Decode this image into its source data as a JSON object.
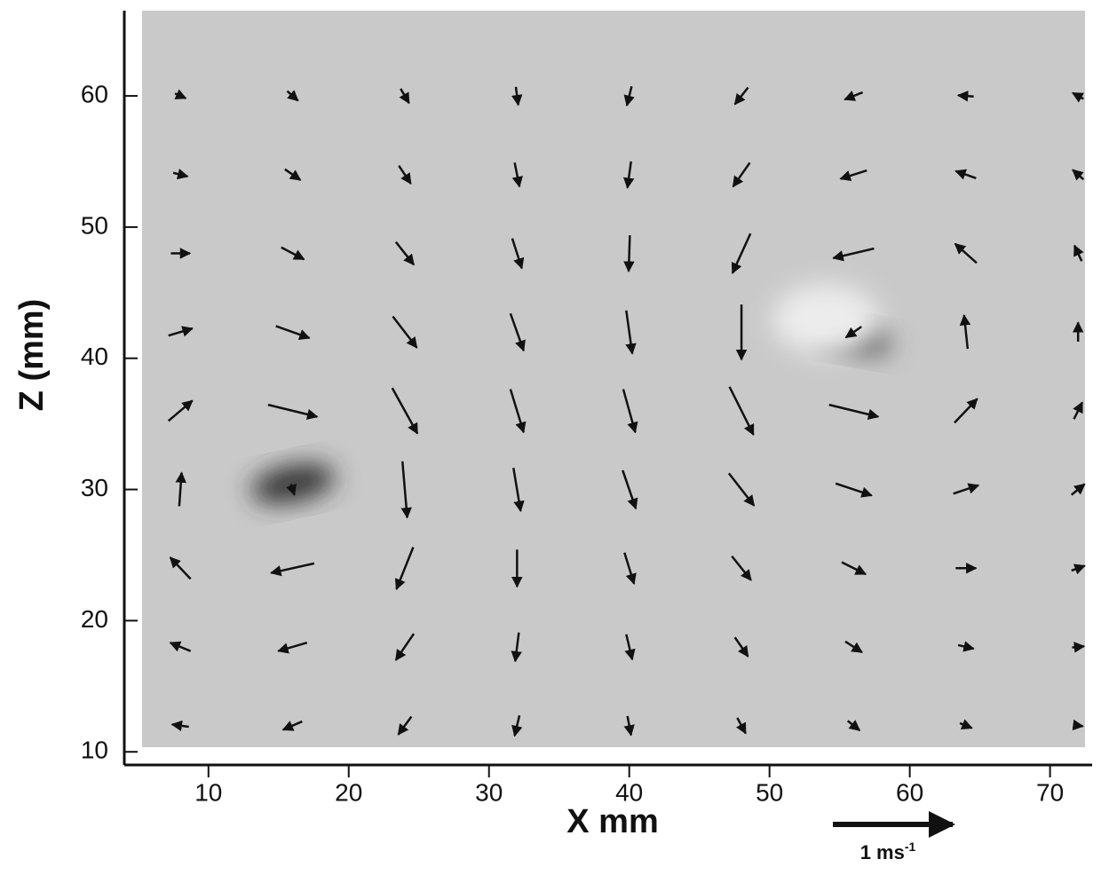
{
  "chart_data": {
    "type": "quiver",
    "x_label": "X mm",
    "y_label": "Z (mm)",
    "xlim": [
      4,
      73
    ],
    "ylim": [
      9,
      66.5
    ],
    "xticks": [
      10,
      20,
      30,
      40,
      50,
      60,
      70
    ],
    "yticks": [
      10,
      20,
      30,
      40,
      50,
      60
    ],
    "color": "#111111",
    "background": "#c9c9c9",
    "scale_arrow": {
      "value": 1,
      "label": "1 ms",
      "exponent": "-1"
    },
    "x": [
      8,
      16,
      24,
      32,
      40,
      48,
      56,
      64,
      72,
      8,
      16,
      24,
      32,
      40,
      48,
      56,
      64,
      72,
      8,
      16,
      24,
      32,
      40,
      48,
      56,
      64,
      72,
      8,
      16,
      24,
      32,
      40,
      48,
      56,
      64,
      72,
      8,
      16,
      24,
      32,
      40,
      48,
      56,
      64,
      72,
      8,
      16,
      24,
      32,
      40,
      48,
      56,
      64,
      72,
      8,
      16,
      24,
      32,
      40,
      48,
      56,
      64,
      72,
      8,
      16,
      24,
      32,
      40,
      48,
      56,
      64,
      72,
      8,
      16,
      24,
      32,
      40,
      48,
      56,
      64,
      72
    ],
    "y": [
      12,
      12,
      12,
      12,
      12,
      12,
      12,
      12,
      12,
      18,
      18,
      18,
      18,
      18,
      18,
      18,
      18,
      18,
      24,
      24,
      24,
      24,
      24,
      24,
      24,
      24,
      24,
      30,
      30,
      30,
      30,
      30,
      30,
      30,
      30,
      30,
      36,
      36,
      36,
      36,
      36,
      36,
      36,
      36,
      36,
      42,
      42,
      42,
      42,
      42,
      42,
      42,
      42,
      42,
      48,
      48,
      48,
      48,
      48,
      48,
      48,
      48,
      48,
      54,
      54,
      54,
      54,
      54,
      54,
      54,
      54,
      54,
      60,
      60,
      60,
      60,
      60,
      60,
      60,
      60,
      60
    ],
    "u": [
      -0.14,
      -0.16,
      -0.11,
      -0.04,
      0.03,
      0.07,
      0.1,
      0.1,
      0.08,
      -0.17,
      -0.24,
      -0.15,
      -0.03,
      0.05,
      0.11,
      0.14,
      0.13,
      0.1,
      -0.17,
      -0.36,
      -0.14,
      0.0,
      0.08,
      0.16,
      0.2,
      0.17,
      0.11,
      0.02,
      0.03,
      0.04,
      0.06,
      0.11,
      0.21,
      0.3,
      0.21,
      0.11,
      0.2,
      0.41,
      0.21,
      0.11,
      0.1,
      0.2,
      0.41,
      0.19,
      0.07,
      0.2,
      0.28,
      0.2,
      0.11,
      0.05,
      0.0,
      -0.13,
      -0.03,
      0.0,
      0.16,
      0.19,
      0.15,
      0.08,
      -0.01,
      -0.15,
      -0.34,
      -0.18,
      -0.06,
      0.12,
      0.13,
      0.1,
      0.04,
      -0.03,
      -0.14,
      -0.22,
      -0.17,
      -0.09,
      0.09,
      0.09,
      0.07,
      0.02,
      -0.04,
      -0.11,
      -0.15,
      -0.13,
      -0.09
    ],
    "v": [
      0.02,
      -0.07,
      -0.15,
      -0.17,
      -0.16,
      -0.13,
      -0.08,
      -0.04,
      -0.01,
      0.07,
      -0.07,
      -0.22,
      -0.24,
      -0.21,
      -0.16,
      -0.09,
      -0.03,
      0.01,
      0.18,
      -0.08,
      -0.35,
      -0.31,
      -0.26,
      -0.2,
      -0.1,
      0.0,
      0.04,
      0.28,
      -0.09,
      -0.47,
      -0.36,
      -0.32,
      -0.27,
      -0.1,
      0.07,
      0.09,
      0.17,
      -0.1,
      -0.38,
      -0.36,
      -0.36,
      -0.4,
      -0.1,
      0.2,
      0.14,
      0.06,
      -0.1,
      -0.26,
      -0.31,
      -0.36,
      -0.46,
      -0.09,
      0.28,
      0.16,
      0.0,
      -0.1,
      -0.19,
      -0.25,
      -0.3,
      -0.33,
      -0.08,
      0.16,
      0.13,
      -0.03,
      -0.09,
      -0.15,
      -0.2,
      -0.22,
      -0.2,
      -0.07,
      0.06,
      0.08,
      -0.04,
      -0.08,
      -0.12,
      -0.15,
      -0.16,
      -0.14,
      -0.06,
      0.01,
      0.05
    ]
  }
}
